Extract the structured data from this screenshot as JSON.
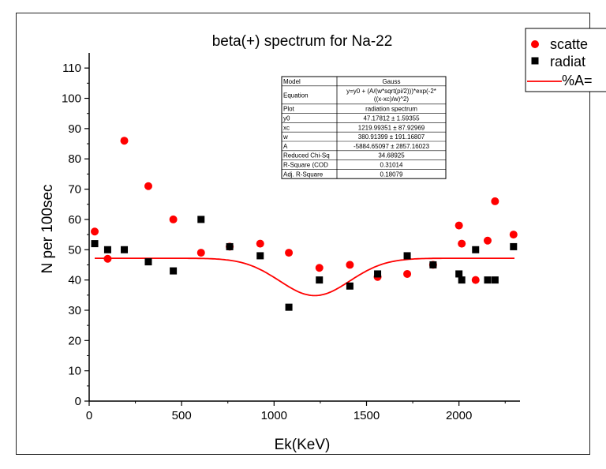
{
  "chart_data": {
    "type": "scatter",
    "title": "beta(+) spectrum for Na-22",
    "xlabel": "Ek(KeV)",
    "ylabel": "N per 100sec",
    "xlim": [
      0,
      2330
    ],
    "ylim": [
      0,
      115
    ],
    "xticks": [
      0,
      500,
      1000,
      1500,
      2000
    ],
    "yticks": [
      0,
      10,
      20,
      30,
      40,
      50,
      60,
      70,
      80,
      90,
      100,
      110
    ],
    "legend_position": "top-right",
    "series": [
      {
        "name": "scatte",
        "marker": "circle",
        "color": "#ff0000",
        "points": [
          [
            30,
            56
          ],
          [
            100,
            47
          ],
          [
            190,
            86
          ],
          [
            320,
            71
          ],
          [
            455,
            60
          ],
          [
            605,
            49
          ],
          [
            760,
            51
          ],
          [
            925,
            52
          ],
          [
            1080,
            49
          ],
          [
            1245,
            44
          ],
          [
            1410,
            45
          ],
          [
            1560,
            41
          ],
          [
            1720,
            42
          ],
          [
            1860,
            45
          ],
          [
            2000,
            58
          ],
          [
            2015,
            52
          ],
          [
            2090,
            40
          ],
          [
            2155,
            53
          ],
          [
            2195,
            66
          ],
          [
            2295,
            55
          ]
        ]
      },
      {
        "name": "radiat",
        "marker": "square",
        "color": "#000000",
        "points": [
          [
            30,
            52
          ],
          [
            100,
            50
          ],
          [
            190,
            50
          ],
          [
            320,
            46
          ],
          [
            455,
            43
          ],
          [
            605,
            60
          ],
          [
            760,
            51
          ],
          [
            925,
            48
          ],
          [
            1080,
            31
          ],
          [
            1245,
            40
          ],
          [
            1410,
            38
          ],
          [
            1560,
            42
          ],
          [
            1720,
            48
          ],
          [
            1860,
            45
          ],
          [
            2000,
            42
          ],
          [
            2015,
            40
          ],
          [
            2090,
            50
          ],
          [
            2155,
            40
          ],
          [
            2195,
            40
          ],
          [
            2295,
            51
          ]
        ]
      },
      {
        "name": "%A=",
        "type": "line",
        "color": "#ff0000",
        "fit": {
          "y0": 47.17812,
          "xc": 1219.99351,
          "w": 380.91399,
          "A": -5884.65097
        },
        "x_range": [
          30,
          2300
        ]
      }
    ],
    "fit_table": [
      [
        "Model",
        "Gauss"
      ],
      [
        "Equation",
        "y=y0 + (A/(w*sqrt(pi/2)))*exp(-2*",
        "((x-xc)/w)^2)"
      ],
      [
        "Plot",
        "radiation spectrum"
      ],
      [
        "y0",
        "47.17812 ± 1.59355"
      ],
      [
        "xc",
        "1219.99351 ± 87.92969"
      ],
      [
        "w",
        "380.91399 ± 191.16807"
      ],
      [
        "A",
        "-5884.65097 ± 2857.16023"
      ],
      [
        "Reduced Chi-Sq",
        "34.68925"
      ],
      [
        "R-Square (COD",
        "0.31014"
      ],
      [
        "Adj. R-Square",
        "0.18079"
      ]
    ]
  }
}
